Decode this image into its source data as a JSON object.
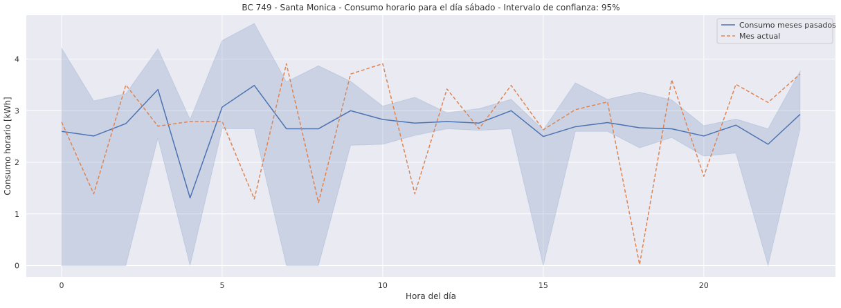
{
  "chart_data": {
    "type": "line",
    "title": "BC 749 - Santa Monica - Consumo horario para el día sábado - Intervalo de confianza: 95%",
    "xlabel": "Hora del día",
    "ylabel": "Consumo horario [kWh]",
    "xlim": [
      -1.1,
      24.1
    ],
    "ylim": [
      -0.22,
      4.85
    ],
    "x_ticks": [
      0,
      5,
      10,
      15,
      20
    ],
    "y_ticks": [
      0,
      1,
      2,
      3,
      4
    ],
    "grid": true,
    "legend_position": "top-right",
    "x": [
      0,
      1,
      2,
      3,
      4,
      5,
      6,
      7,
      8,
      9,
      10,
      11,
      12,
      13,
      14,
      15,
      16,
      17,
      18,
      19,
      20,
      21,
      22,
      23
    ],
    "series": [
      {
        "name": "Consumo meses pasados",
        "style": "solid",
        "color": "#4c72b0",
        "values": [
          2.6,
          2.51,
          2.75,
          3.41,
          1.31,
          3.07,
          3.49,
          2.65,
          2.65,
          3.0,
          2.83,
          2.76,
          2.79,
          2.76,
          3.0,
          2.5,
          2.69,
          2.77,
          2.67,
          2.65,
          2.51,
          2.72,
          2.35,
          2.93
        ],
        "ci_lower": [
          0.0,
          0.0,
          0.0,
          2.47,
          0.0,
          2.65,
          2.65,
          0.0,
          0.0,
          2.33,
          2.35,
          2.52,
          2.65,
          2.62,
          2.65,
          0.0,
          2.6,
          2.6,
          2.28,
          2.48,
          2.12,
          2.18,
          0.0,
          2.65
        ],
        "ci_upper": [
          4.21,
          3.19,
          3.33,
          4.2,
          2.83,
          4.36,
          4.69,
          3.56,
          3.87,
          3.57,
          3.09,
          3.26,
          2.96,
          3.04,
          3.22,
          2.63,
          3.54,
          3.22,
          3.36,
          3.21,
          2.71,
          2.84,
          2.65,
          3.77
        ]
      },
      {
        "name": "Mes actual",
        "style": "dashed",
        "color": "#dd8452",
        "values": [
          2.78,
          1.39,
          3.5,
          2.7,
          2.79,
          2.79,
          1.29,
          3.91,
          1.22,
          3.71,
          3.91,
          1.39,
          3.42,
          2.65,
          3.49,
          2.63,
          3.02,
          3.17,
          0.02,
          3.6,
          1.73,
          3.51,
          3.16,
          3.71
        ]
      }
    ],
    "colors": {
      "background": "#eaeaf2",
      "grid": "#ffffff",
      "ci_fill": "#4c72b0"
    }
  }
}
